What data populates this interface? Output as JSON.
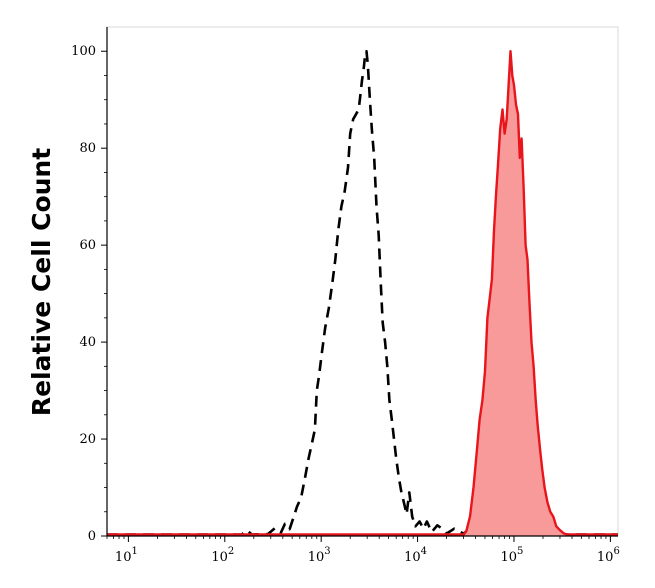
{
  "chart_data": {
    "type": "area",
    "title": "",
    "xlabel": "",
    "ylabel": "Relative Cell Count",
    "x_scale": "log",
    "xlim": [
      6,
      1200000
    ],
    "ylim": [
      0,
      105
    ],
    "x_ticks": [
      {
        "value": 10,
        "base": "10",
        "exp": "1"
      },
      {
        "value": 100,
        "base": "10",
        "exp": "2"
      },
      {
        "value": 1000,
        "base": "10",
        "exp": "3"
      },
      {
        "value": 10000,
        "base": "10",
        "exp": "4"
      },
      {
        "value": 100000,
        "base": "10",
        "exp": "5"
      },
      {
        "value": 1000000,
        "base": "10",
        "exp": "6"
      }
    ],
    "y_ticks": [
      0,
      20,
      40,
      60,
      80,
      100
    ],
    "grid": false,
    "legend": "none",
    "series": [
      {
        "style": "dashed",
        "color": "#000000",
        "fill": false,
        "points": [
          [
            6,
            0.3
          ],
          [
            150,
            0.3
          ],
          [
            170,
            1.2
          ],
          [
            190,
            0.3
          ],
          [
            280,
            0.4
          ],
          [
            330,
            1.6
          ],
          [
            380,
            0.6
          ],
          [
            420,
            2.5
          ],
          [
            470,
            1.4
          ],
          [
            520,
            4
          ],
          [
            560,
            6
          ],
          [
            620,
            8
          ],
          [
            680,
            12
          ],
          [
            740,
            16
          ],
          [
            800,
            19
          ],
          [
            860,
            22
          ],
          [
            900,
            30
          ],
          [
            950,
            33
          ],
          [
            1020,
            38
          ],
          [
            1100,
            43
          ],
          [
            1200,
            47
          ],
          [
            1300,
            52
          ],
          [
            1400,
            57
          ],
          [
            1500,
            63
          ],
          [
            1620,
            68
          ],
          [
            1750,
            71
          ],
          [
            1900,
            76
          ],
          [
            2000,
            83
          ],
          [
            2150,
            86
          ],
          [
            2300,
            87
          ],
          [
            2450,
            88
          ],
          [
            2550,
            91
          ],
          [
            2650,
            94
          ],
          [
            2750,
            96
          ],
          [
            2850,
            99
          ],
          [
            2950,
            100
          ],
          [
            3050,
            97
          ],
          [
            3200,
            90
          ],
          [
            3350,
            84
          ],
          [
            3550,
            78
          ],
          [
            3750,
            68
          ],
          [
            3950,
            62
          ],
          [
            4150,
            52
          ],
          [
            4350,
            44
          ],
          [
            4600,
            40
          ],
          [
            4850,
            35
          ],
          [
            5100,
            28
          ],
          [
            5400,
            24
          ],
          [
            5700,
            20
          ],
          [
            6000,
            16
          ],
          [
            6400,
            12
          ],
          [
            6800,
            9
          ],
          [
            7200,
            7
          ],
          [
            7700,
            4.5
          ],
          [
            8200,
            9
          ],
          [
            8800,
            4
          ],
          [
            9500,
            2
          ],
          [
            10500,
            3
          ],
          [
            11500,
            1.5
          ],
          [
            12500,
            3
          ],
          [
            14000,
            0.8
          ],
          [
            16000,
            2.2
          ],
          [
            18000,
            1.5
          ],
          [
            20000,
            0.5
          ],
          [
            24000,
            1.5
          ],
          [
            30000,
            0.5
          ],
          [
            36000,
            1.8
          ],
          [
            42000,
            1
          ],
          [
            48000,
            0.6
          ],
          [
            56000,
            1.8
          ],
          [
            65000,
            0.4
          ],
          [
            75000,
            1
          ],
          [
            90000,
            0.4
          ],
          [
            110000,
            0.6
          ],
          [
            130000,
            0.3
          ],
          [
            160000,
            0.6
          ],
          [
            220000,
            0.3
          ],
          [
            1200000,
            0.3
          ]
        ]
      },
      {
        "style": "solid",
        "color": "#e8151c",
        "fill": true,
        "fill_color": "#f89a9a",
        "points": [
          [
            6,
            0.3
          ],
          [
            30000,
            0.3
          ],
          [
            32000,
            1
          ],
          [
            35000,
            4
          ],
          [
            38000,
            10
          ],
          [
            41000,
            17
          ],
          [
            44000,
            24
          ],
          [
            47000,
            28
          ],
          [
            50000,
            34
          ],
          [
            53000,
            45
          ],
          [
            56000,
            49
          ],
          [
            59000,
            53
          ],
          [
            62000,
            63
          ],
          [
            65000,
            70
          ],
          [
            68000,
            76
          ],
          [
            72000,
            84
          ],
          [
            76000,
            88
          ],
          [
            80000,
            83
          ],
          [
            84000,
            86
          ],
          [
            88000,
            93
          ],
          [
            92000,
            100
          ],
          [
            96000,
            95
          ],
          [
            100000,
            93
          ],
          [
            105000,
            89
          ],
          [
            110000,
            87
          ],
          [
            115000,
            78
          ],
          [
            120000,
            82
          ],
          [
            126000,
            72
          ],
          [
            132000,
            60
          ],
          [
            138000,
            57
          ],
          [
            145000,
            48
          ],
          [
            152000,
            40
          ],
          [
            160000,
            35
          ],
          [
            168000,
            28
          ],
          [
            176000,
            23
          ],
          [
            186000,
            18
          ],
          [
            196000,
            14
          ],
          [
            208000,
            10
          ],
          [
            222000,
            7
          ],
          [
            238000,
            5
          ],
          [
            256000,
            4
          ],
          [
            275000,
            2
          ],
          [
            300000,
            1.2
          ],
          [
            330000,
            0.5
          ],
          [
            360000,
            0.3
          ],
          [
            1200000,
            0.3
          ]
        ]
      }
    ]
  }
}
